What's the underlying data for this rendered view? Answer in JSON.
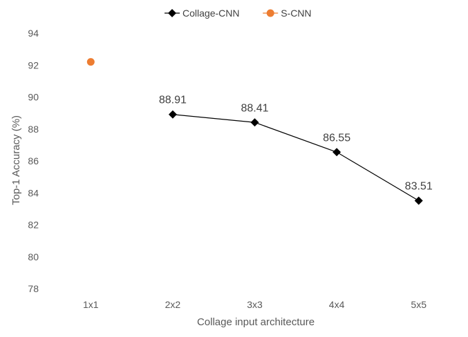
{
  "chart_data": {
    "type": "line",
    "title": "",
    "xlabel": "Collage input architecture",
    "ylabel": "Top-1 Accuracy (%)",
    "categories": [
      "1x1",
      "2x2",
      "3x3",
      "4x4",
      "5x5"
    ],
    "ylim": [
      78,
      94
    ],
    "yticks": [
      78,
      80,
      82,
      84,
      86,
      88,
      90,
      92,
      94
    ],
    "grid": false,
    "legend_position": "top",
    "series": [
      {
        "name": "Collage-CNN",
        "marker": "diamond",
        "color": "#000000",
        "values": [
          null,
          88.91,
          88.41,
          86.55,
          83.51
        ],
        "data_labels": [
          "",
          "88.91",
          "88.41",
          "86.55",
          "83.51"
        ]
      },
      {
        "name": "S-CNN",
        "marker": "circle",
        "color": "#ED7D31",
        "values": [
          92.2,
          null,
          null,
          null,
          null
        ],
        "data_labels": [
          "",
          "",
          "",
          "",
          ""
        ]
      }
    ]
  }
}
